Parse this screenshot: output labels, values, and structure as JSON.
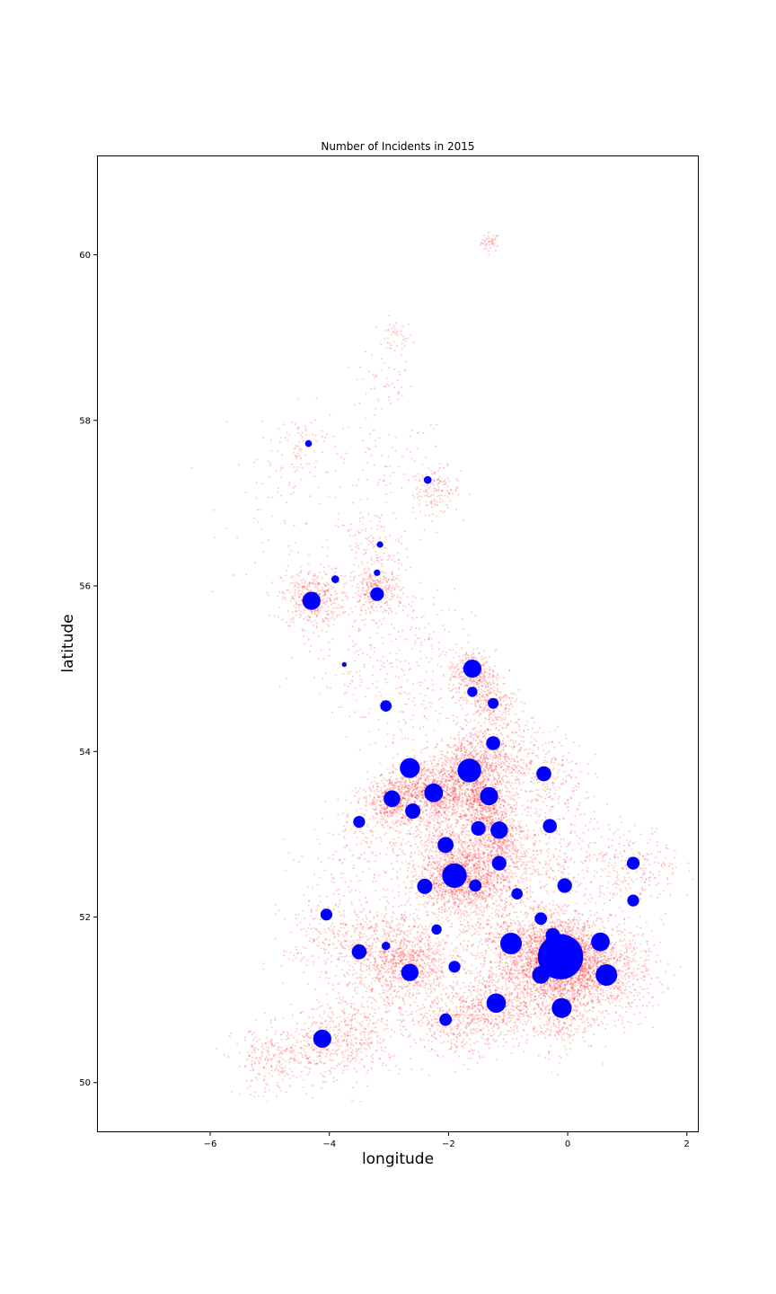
{
  "chart_data": {
    "type": "scatter",
    "title": "Number of Incidents in 2015",
    "xlabel": "longitude",
    "ylabel": "latitude",
    "xlim": [
      -7.9,
      2.2
    ],
    "ylim": [
      49.4,
      61.2
    ],
    "xticks": [
      -6,
      -4,
      -2,
      0,
      2
    ],
    "yticks": [
      50,
      52,
      54,
      56,
      58,
      60
    ],
    "grid": false,
    "colors": {
      "incidents": "#ff0000",
      "cities": "#0000ff"
    },
    "incident_clusters": [
      {
        "lon": -1.3,
        "lat": 60.15,
        "spread": 0.08,
        "weight": 2
      },
      {
        "lon": -2.9,
        "lat": 59.0,
        "spread": 0.15,
        "weight": 2
      },
      {
        "lon": -3.1,
        "lat": 58.45,
        "spread": 0.25,
        "weight": 2
      },
      {
        "lon": -4.5,
        "lat": 57.7,
        "spread": 0.35,
        "weight": 4
      },
      {
        "lon": -2.2,
        "lat": 57.15,
        "spread": 0.2,
        "weight": 6
      },
      {
        "lon": -3.0,
        "lat": 57.4,
        "spread": 0.5,
        "weight": 4
      },
      {
        "lon": -4.6,
        "lat": 57.0,
        "spread": 0.6,
        "weight": 3
      },
      {
        "lon": -3.3,
        "lat": 56.45,
        "spread": 0.35,
        "weight": 6
      },
      {
        "lon": -4.3,
        "lat": 55.85,
        "spread": 0.25,
        "weight": 18
      },
      {
        "lon": -3.2,
        "lat": 55.92,
        "spread": 0.22,
        "weight": 14
      },
      {
        "lon": -3.5,
        "lat": 55.2,
        "spread": 0.5,
        "weight": 5
      },
      {
        "lon": -2.5,
        "lat": 55.3,
        "spread": 0.45,
        "weight": 4
      },
      {
        "lon": -1.6,
        "lat": 54.95,
        "spread": 0.2,
        "weight": 14
      },
      {
        "lon": -1.3,
        "lat": 54.6,
        "spread": 0.2,
        "weight": 10
      },
      {
        "lon": -2.8,
        "lat": 54.5,
        "spread": 0.5,
        "weight": 6
      },
      {
        "lon": -1.1,
        "lat": 54.1,
        "spread": 0.35,
        "weight": 8
      },
      {
        "lon": -0.4,
        "lat": 53.75,
        "spread": 0.35,
        "weight": 10
      },
      {
        "lon": -2.25,
        "lat": 53.5,
        "spread": 0.3,
        "weight": 40
      },
      {
        "lon": -1.55,
        "lat": 53.8,
        "spread": 0.3,
        "weight": 35
      },
      {
        "lon": -2.9,
        "lat": 53.42,
        "spread": 0.22,
        "weight": 22
      },
      {
        "lon": -1.4,
        "lat": 53.4,
        "spread": 0.22,
        "weight": 22
      },
      {
        "lon": -1.2,
        "lat": 53.0,
        "spread": 0.25,
        "weight": 20
      },
      {
        "lon": -1.9,
        "lat": 52.5,
        "spread": 0.3,
        "weight": 38
      },
      {
        "lon": -2.1,
        "lat": 52.9,
        "spread": 0.35,
        "weight": 14
      },
      {
        "lon": -1.5,
        "lat": 52.4,
        "spread": 0.3,
        "weight": 16
      },
      {
        "lon": -1.1,
        "lat": 52.65,
        "spread": 0.3,
        "weight": 14
      },
      {
        "lon": -0.4,
        "lat": 53.0,
        "spread": 0.5,
        "weight": 8
      },
      {
        "lon": 0.3,
        "lat": 52.5,
        "spread": 0.55,
        "weight": 10
      },
      {
        "lon": 1.2,
        "lat": 52.6,
        "spread": 0.35,
        "weight": 8
      },
      {
        "lon": -0.12,
        "lat": 51.5,
        "spread": 0.3,
        "weight": 90
      },
      {
        "lon": -0.6,
        "lat": 51.45,
        "spread": 0.4,
        "weight": 30
      },
      {
        "lon": 0.4,
        "lat": 51.4,
        "spread": 0.35,
        "weight": 26
      },
      {
        "lon": 0.8,
        "lat": 51.3,
        "spread": 0.4,
        "weight": 16
      },
      {
        "lon": -1.0,
        "lat": 51.7,
        "spread": 0.45,
        "weight": 20
      },
      {
        "lon": -1.3,
        "lat": 50.9,
        "spread": 0.35,
        "weight": 22
      },
      {
        "lon": -0.2,
        "lat": 50.85,
        "spread": 0.35,
        "weight": 18
      },
      {
        "lon": -2.6,
        "lat": 51.45,
        "spread": 0.3,
        "weight": 22
      },
      {
        "lon": -3.2,
        "lat": 51.55,
        "spread": 0.35,
        "weight": 18
      },
      {
        "lon": -4.0,
        "lat": 51.7,
        "spread": 0.4,
        "weight": 10
      },
      {
        "lon": -3.6,
        "lat": 52.4,
        "spread": 0.55,
        "weight": 5
      },
      {
        "lon": -3.3,
        "lat": 53.1,
        "spread": 0.35,
        "weight": 6
      },
      {
        "lon": -1.95,
        "lat": 50.75,
        "spread": 0.3,
        "weight": 12
      },
      {
        "lon": -2.8,
        "lat": 50.9,
        "spread": 0.45,
        "weight": 8
      },
      {
        "lon": -3.5,
        "lat": 50.6,
        "spread": 0.35,
        "weight": 12
      },
      {
        "lon": -4.15,
        "lat": 50.45,
        "spread": 0.3,
        "weight": 12
      },
      {
        "lon": -5.0,
        "lat": 50.25,
        "spread": 0.3,
        "weight": 10
      },
      {
        "lon": -2.4,
        "lat": 52.0,
        "spread": 0.5,
        "weight": 10
      }
    ],
    "city_points": [
      {
        "lon": -4.35,
        "lat": 57.72,
        "count": 20
      },
      {
        "lon": -2.35,
        "lat": 57.28,
        "count": 25
      },
      {
        "lon": -3.15,
        "lat": 56.5,
        "count": 18
      },
      {
        "lon": -3.2,
        "lat": 56.16,
        "count": 18
      },
      {
        "lon": -3.9,
        "lat": 56.08,
        "count": 25
      },
      {
        "lon": -4.3,
        "lat": 55.82,
        "count": 140
      },
      {
        "lon": -3.2,
        "lat": 55.9,
        "count": 80
      },
      {
        "lon": -3.75,
        "lat": 55.05,
        "count": 10
      },
      {
        "lon": -1.6,
        "lat": 55.0,
        "count": 140
      },
      {
        "lon": -1.6,
        "lat": 54.72,
        "count": 45
      },
      {
        "lon": -1.25,
        "lat": 54.58,
        "count": 50
      },
      {
        "lon": -3.05,
        "lat": 54.55,
        "count": 55
      },
      {
        "lon": -1.25,
        "lat": 54.1,
        "count": 85
      },
      {
        "lon": -2.65,
        "lat": 53.8,
        "count": 170
      },
      {
        "lon": -1.65,
        "lat": 53.77,
        "count": 240
      },
      {
        "lon": -0.4,
        "lat": 53.73,
        "count": 95
      },
      {
        "lon": -2.25,
        "lat": 53.5,
        "count": 150
      },
      {
        "lon": -2.95,
        "lat": 53.43,
        "count": 120
      },
      {
        "lon": -1.32,
        "lat": 53.46,
        "count": 140
      },
      {
        "lon": -2.6,
        "lat": 53.28,
        "count": 100
      },
      {
        "lon": -3.5,
        "lat": 53.15,
        "count": 60
      },
      {
        "lon": -1.5,
        "lat": 53.07,
        "count": 90
      },
      {
        "lon": -1.15,
        "lat": 53.05,
        "count": 130
      },
      {
        "lon": -0.3,
        "lat": 53.1,
        "count": 85
      },
      {
        "lon": -2.05,
        "lat": 52.87,
        "count": 110
      },
      {
        "lon": -1.9,
        "lat": 52.5,
        "count": 260
      },
      {
        "lon": -1.15,
        "lat": 52.65,
        "count": 90
      },
      {
        "lon": -2.4,
        "lat": 52.37,
        "count": 100
      },
      {
        "lon": -1.55,
        "lat": 52.38,
        "count": 65
      },
      {
        "lon": -0.85,
        "lat": 52.28,
        "count": 55
      },
      {
        "lon": -0.05,
        "lat": 52.38,
        "count": 90
      },
      {
        "lon": 1.1,
        "lat": 52.65,
        "count": 70
      },
      {
        "lon": 1.1,
        "lat": 52.2,
        "count": 60
      },
      {
        "lon": -4.05,
        "lat": 52.03,
        "count": 60
      },
      {
        "lon": -2.2,
        "lat": 51.85,
        "count": 45
      },
      {
        "lon": -0.45,
        "lat": 51.98,
        "count": 65
      },
      {
        "lon": -0.95,
        "lat": 51.68,
        "count": 200
      },
      {
        "lon": 0.55,
        "lat": 51.7,
        "count": 150
      },
      {
        "lon": -0.25,
        "lat": 51.78,
        "count": 90
      },
      {
        "lon": -0.12,
        "lat": 51.52,
        "count": 880
      },
      {
        "lon": -3.5,
        "lat": 51.58,
        "count": 95
      },
      {
        "lon": -3.05,
        "lat": 51.65,
        "count": 30
      },
      {
        "lon": -2.65,
        "lat": 51.33,
        "count": 130
      },
      {
        "lon": -1.9,
        "lat": 51.4,
        "count": 60
      },
      {
        "lon": -0.45,
        "lat": 51.3,
        "count": 130
      },
      {
        "lon": 0.65,
        "lat": 51.3,
        "count": 200
      },
      {
        "lon": -1.2,
        "lat": 50.96,
        "count": 160
      },
      {
        "lon": -0.1,
        "lat": 50.9,
        "count": 170
      },
      {
        "lon": -2.05,
        "lat": 50.76,
        "count": 65
      },
      {
        "lon": -4.12,
        "lat": 50.53,
        "count": 140
      }
    ]
  }
}
